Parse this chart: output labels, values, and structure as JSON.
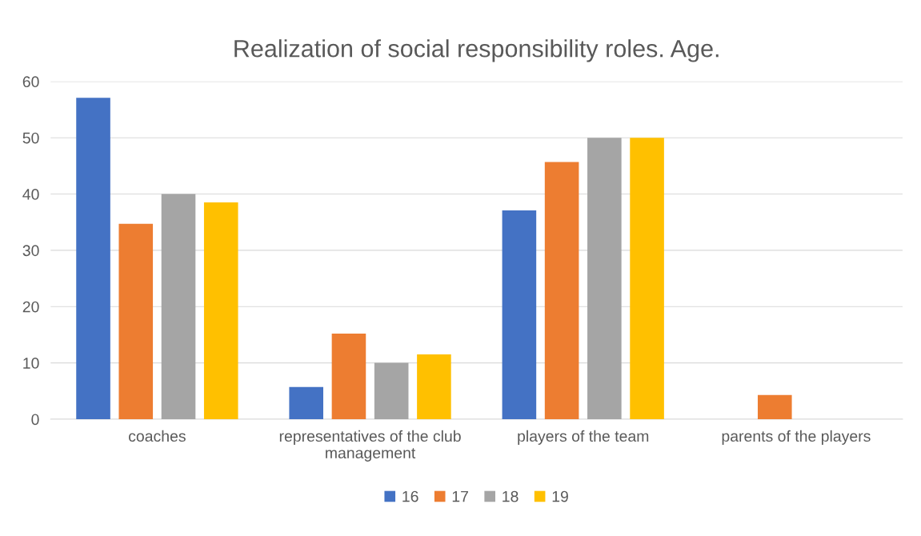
{
  "chart_data": {
    "type": "bar",
    "title": "Realization of social responsibility roles. Age.",
    "categories": [
      "coaches",
      "representatives of the club management",
      "players of the team",
      "parents of the players"
    ],
    "series": [
      {
        "name": "16",
        "color": "#4472c4",
        "values": [
          57.1,
          5.7,
          37.1,
          0
        ]
      },
      {
        "name": "17",
        "color": "#ed7d31",
        "values": [
          34.7,
          15.2,
          45.7,
          4.3
        ]
      },
      {
        "name": "18",
        "color": "#a5a5a5",
        "values": [
          40,
          10,
          50,
          0
        ]
      },
      {
        "name": "19",
        "color": "#ffc000",
        "values": [
          38.5,
          11.5,
          50,
          0
        ]
      }
    ],
    "ylim": [
      0,
      60
    ],
    "yticks": [
      0,
      10,
      20,
      30,
      40,
      50,
      60
    ],
    "grid": "y",
    "legend": "bottom"
  }
}
